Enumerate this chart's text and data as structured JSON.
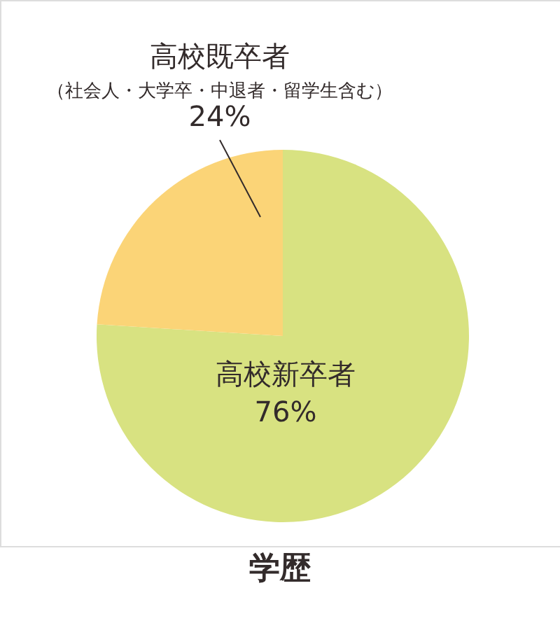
{
  "chart_data": {
    "type": "pie",
    "title": "学歴",
    "categories": [
      "高校新卒者",
      "高校既卒者"
    ],
    "values": [
      76,
      24
    ],
    "colors": [
      "#d8e281",
      "#fbd477"
    ],
    "value_labels": [
      "76%",
      "24%"
    ],
    "annotations": [
      "（社会人・大学卒・中退者・留学生含む）"
    ]
  }
}
